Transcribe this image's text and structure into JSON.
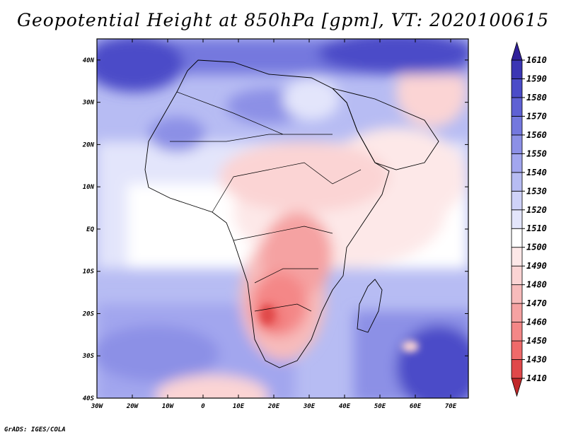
{
  "title": "Geopotential Height at 850hPa [gpm], VT: 2020100615",
  "credit": "GrADS: IGES/COLA",
  "map": {
    "lon_range": [
      -30,
      75
    ],
    "lat_range": [
      -40,
      45
    ],
    "lat_ticks": [
      {
        "value": 40,
        "label": "40N"
      },
      {
        "value": 30,
        "label": "30N"
      },
      {
        "value": 20,
        "label": "20N"
      },
      {
        "value": 10,
        "label": "10N"
      },
      {
        "value": 0,
        "label": "EQ"
      },
      {
        "value": -10,
        "label": "10S"
      },
      {
        "value": -20,
        "label": "20S"
      },
      {
        "value": -30,
        "label": "30S"
      },
      {
        "value": -40,
        "label": "40S"
      }
    ],
    "lon_ticks": [
      {
        "value": -30,
        "label": "30W"
      },
      {
        "value": -20,
        "label": "20W"
      },
      {
        "value": -10,
        "label": "10W"
      },
      {
        "value": 0,
        "label": "0"
      },
      {
        "value": 10,
        "label": "10E"
      },
      {
        "value": 20,
        "label": "20E"
      },
      {
        "value": 30,
        "label": "30E"
      },
      {
        "value": 40,
        "label": "40E"
      },
      {
        "value": 50,
        "label": "50E"
      },
      {
        "value": 60,
        "label": "60E"
      },
      {
        "value": 70,
        "label": "70E"
      }
    ]
  },
  "colorbar": {
    "levels": [
      "1410",
      "1430",
      "1450",
      "1460",
      "1470",
      "1480",
      "1490",
      "1500",
      "1510",
      "1520",
      "1530",
      "1540",
      "1550",
      "1560",
      "1570",
      "1580",
      "1590",
      "1610"
    ],
    "colors": [
      "#c0282a",
      "#e0484a",
      "#ef6a6a",
      "#f48787",
      "#f5a2a2",
      "#f7bbbb",
      "#fbd4d4",
      "#fde8e8",
      "#ffffff",
      "#e3e5fb",
      "#cfd2f8",
      "#b7bcf3",
      "#a2a6ee",
      "#8c90e6",
      "#7478de",
      "#5f61d4",
      "#4b4cc8",
      "#3b36b4",
      "#30209a"
    ]
  }
}
